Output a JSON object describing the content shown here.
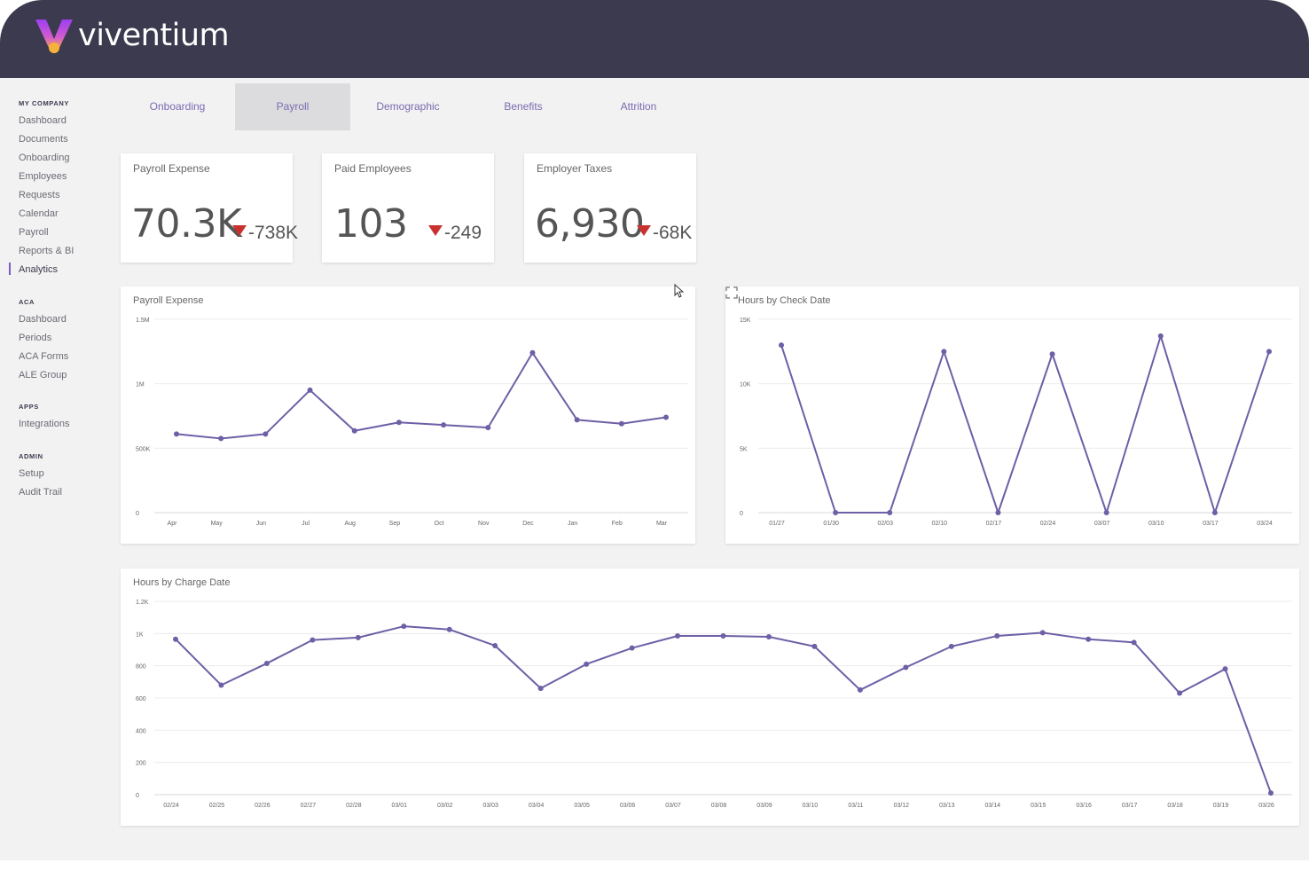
{
  "app": {
    "brand": "viventium",
    "accent": "#7a5cc4",
    "header_bg": "#3b3a4e",
    "line_color": "#6e5fa6"
  },
  "sidebar": {
    "sections": [
      {
        "title": "MY COMPANY",
        "items": [
          "Dashboard",
          "Documents",
          "Onboarding",
          "Employees",
          "Requests",
          "Calendar",
          "Payroll",
          "Reports & BI",
          "Analytics"
        ]
      },
      {
        "title": "ACA",
        "items": [
          "Dashboard",
          "Periods",
          "ACA Forms",
          "ALE Group"
        ]
      },
      {
        "title": "APPS",
        "items": [
          "Integrations"
        ]
      },
      {
        "title": "ADMIN",
        "items": [
          "Setup",
          "Audit Trail"
        ]
      }
    ],
    "active_item": "Analytics"
  },
  "tabs": [
    {
      "label": "Onboarding",
      "active": false
    },
    {
      "label": "Payroll",
      "active": true
    },
    {
      "label": "Demographic",
      "active": false
    },
    {
      "label": "Benefits",
      "active": false
    },
    {
      "label": "Attrition",
      "active": false
    }
  ],
  "kpis": [
    {
      "title": "Payroll Expense",
      "value": "70.3K",
      "delta": "-738K",
      "trend": "down"
    },
    {
      "title": "Paid Employees",
      "value": "103",
      "delta": "-249",
      "trend": "down"
    },
    {
      "title": "Employer Taxes",
      "value": "6,930",
      "delta": "-68K",
      "trend": "down"
    }
  ],
  "chart_data": [
    {
      "type": "line",
      "title": "Payroll Expense",
      "categories": [
        "Apr",
        "May",
        "Jun",
        "Jul",
        "Aug",
        "Sep",
        "Oct",
        "Nov",
        "Dec",
        "Jan",
        "Feb",
        "Mar"
      ],
      "values": [
        610000,
        575000,
        610000,
        950000,
        635000,
        700000,
        680000,
        660000,
        1240000,
        720000,
        690000,
        740000
      ],
      "yticks": [
        "0",
        "500K",
        "1M",
        "1.5M"
      ],
      "ylim": [
        0,
        1500000
      ],
      "grid": true
    },
    {
      "type": "line",
      "title": "Hours by Check Date",
      "categories": [
        "01/27",
        "01/30",
        "02/03",
        "02/10",
        "02/17",
        "02/24",
        "03/07",
        "03/10",
        "03/17",
        "03/24"
      ],
      "values": [
        13000,
        0,
        0,
        12500,
        0,
        12300,
        0,
        13700,
        0,
        12500
      ],
      "yticks": [
        "0",
        "5K",
        "10K",
        "15K"
      ],
      "ylim": [
        0,
        15000
      ],
      "grid": true
    },
    {
      "type": "line",
      "title": "Hours by Charge Date",
      "categories": [
        "02/24",
        "02/25",
        "02/26",
        "02/27",
        "02/28",
        "03/01",
        "03/02",
        "03/03",
        "03/04",
        "03/05",
        "03/06",
        "03/07",
        "03/08",
        "03/09",
        "03/10",
        "03/11",
        "03/12",
        "03/13",
        "03/14",
        "03/15",
        "03/16",
        "03/17",
        "03/18",
        "03/19",
        "03/26"
      ],
      "values": [
        965,
        680,
        815,
        960,
        975,
        1045,
        1025,
        925,
        660,
        810,
        910,
        985,
        985,
        980,
        920,
        650,
        790,
        920,
        985,
        1005,
        965,
        945,
        630,
        780,
        10
      ],
      "yticks": [
        "0",
        "200",
        "400",
        "600",
        "800",
        "1K",
        "1.2K"
      ],
      "ylim": [
        0,
        1200
      ],
      "grid": true
    }
  ]
}
